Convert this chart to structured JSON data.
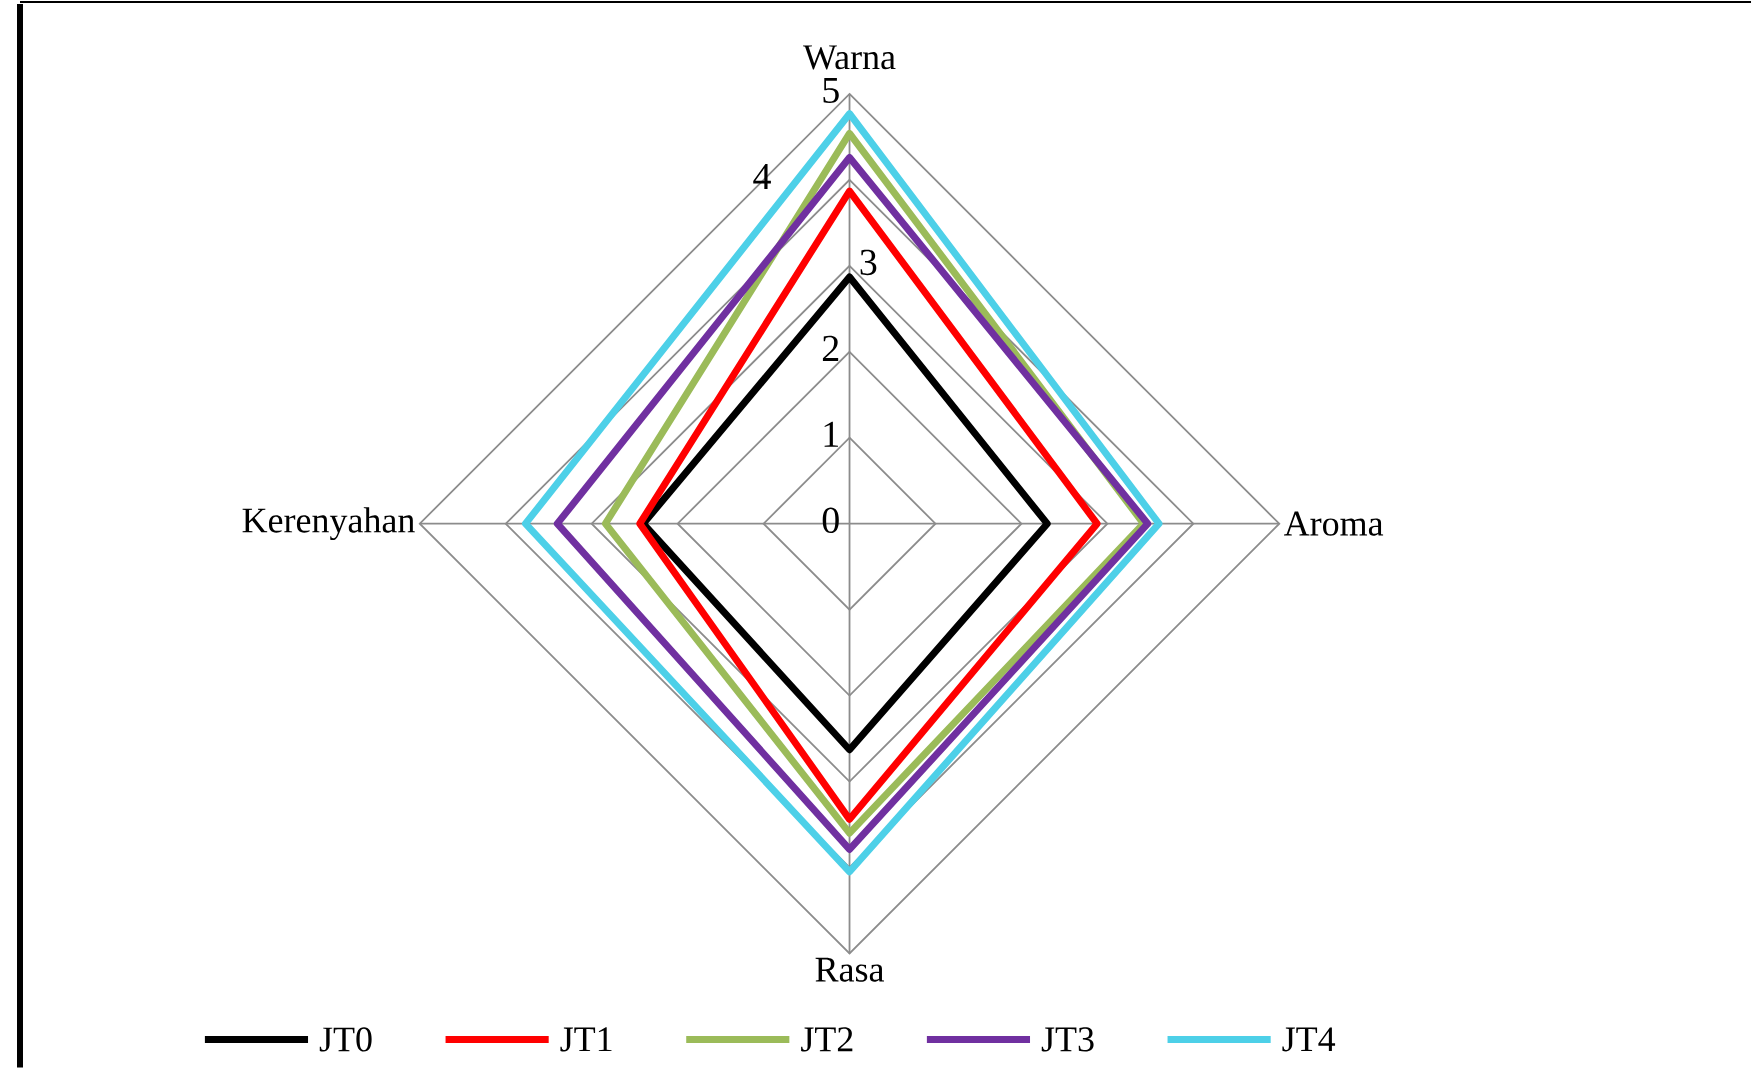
{
  "chart_data": {
    "type": "radar",
    "categories": [
      "Warna",
      "Aroma",
      "Rasa",
      "Kerenyahan"
    ],
    "ylim": [
      0,
      5
    ],
    "yticks": [
      0,
      1,
      2,
      3,
      4,
      5
    ],
    "grid": true,
    "legend": "bottom",
    "series": [
      {
        "name": "JT0",
        "color": "#000000",
        "values": [
          2.87,
          2.3,
          2.63,
          2.4
        ]
      },
      {
        "name": "JT1",
        "color": "#ff0000",
        "values": [
          3.87,
          2.88,
          3.44,
          2.44
        ]
      },
      {
        "name": "JT2",
        "color": "#9bbb59",
        "values": [
          4.54,
          3.42,
          3.6,
          2.84
        ]
      },
      {
        "name": "JT3",
        "color": "#7030a0",
        "values": [
          4.26,
          3.47,
          3.79,
          3.4
        ]
      },
      {
        "name": "JT4",
        "color": "#4dd0e8",
        "values": [
          4.77,
          3.6,
          4.05,
          3.77
        ]
      }
    ]
  }
}
